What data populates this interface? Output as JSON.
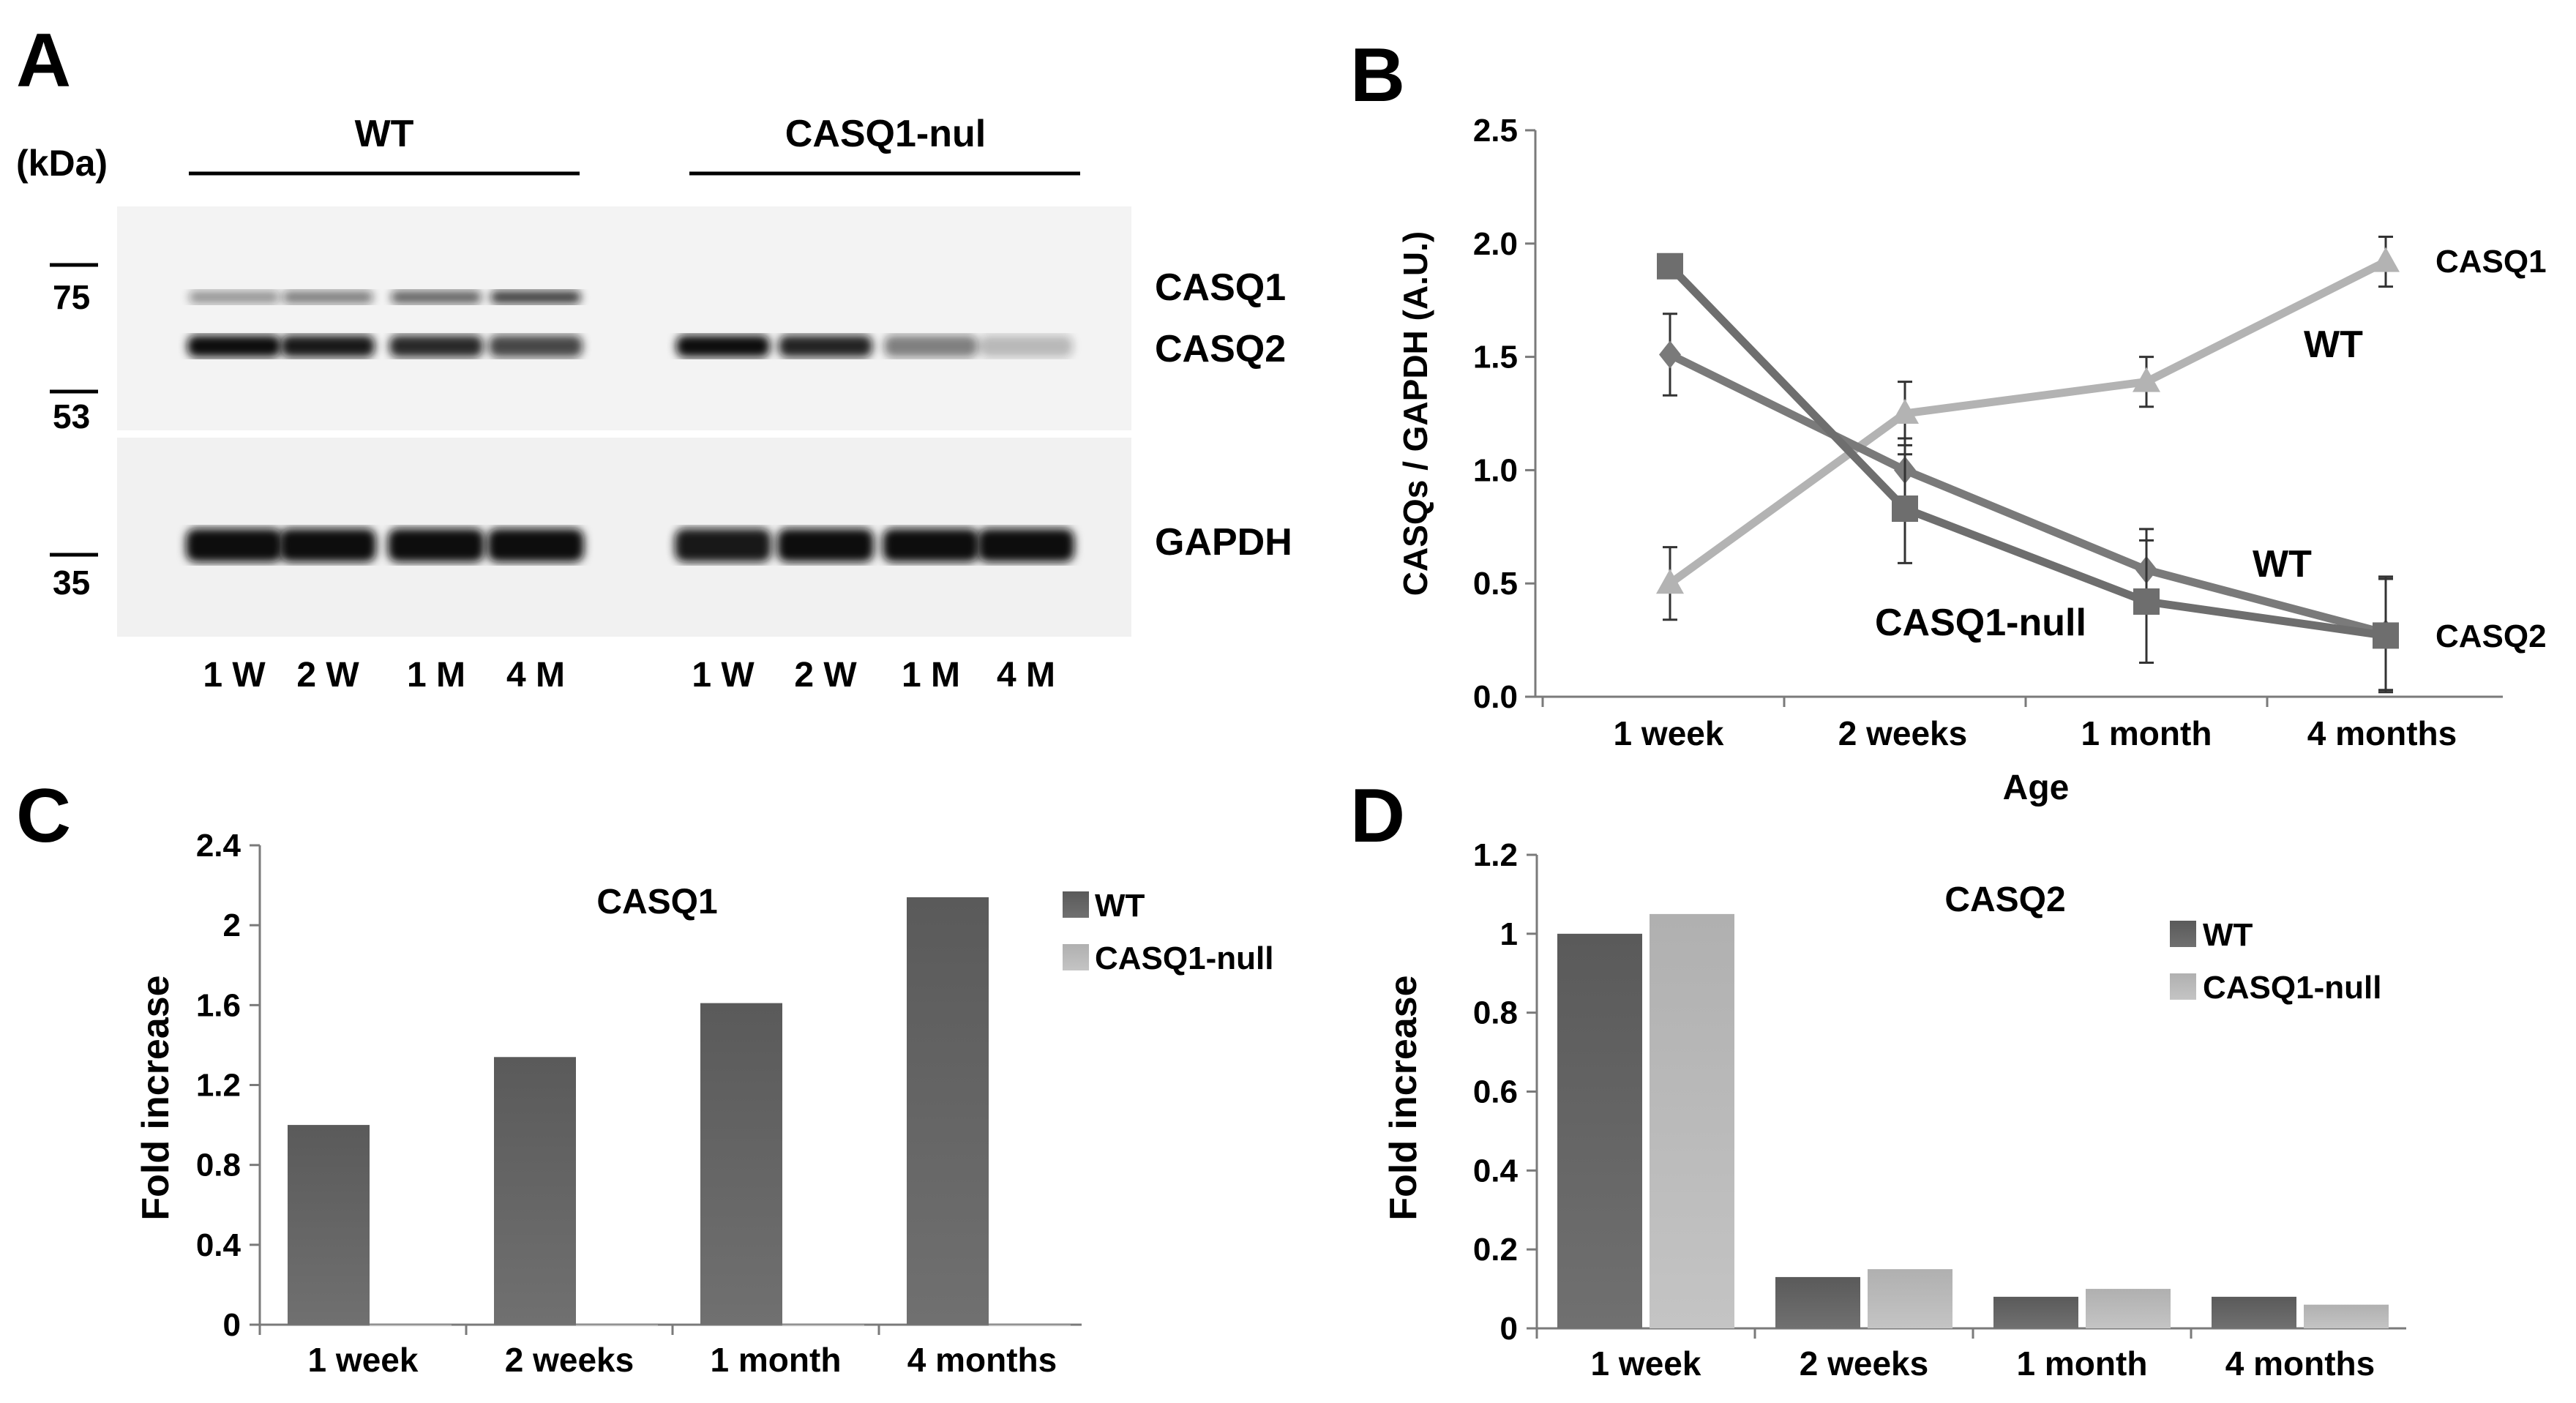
{
  "panel_letters": {
    "a": "A",
    "b": "B",
    "c": "C",
    "d": "D"
  },
  "blot": {
    "kda_label": "(kDa)",
    "groups": [
      "WT",
      "CASQ1-nul"
    ],
    "markers": [
      "75",
      "53",
      "35"
    ],
    "band_labels": [
      "CASQ1",
      "CASQ2",
      "GAPDH"
    ],
    "lanes": [
      "1 W",
      "2 W",
      "1 M",
      "4 M",
      "1 W",
      "2 W",
      "1 M",
      "4 M"
    ],
    "colors": {
      "band": "#111111",
      "background": "#f3f3f3"
    }
  },
  "chart_data": [
    {
      "panel": "B",
      "type": "line",
      "categories": [
        "1 week",
        "2 weeks",
        "1 month",
        "4 months"
      ],
      "xlabel": "Age",
      "ylabel": "CASQs / GAPDH (A.U.)",
      "ylim": [
        0,
        2.5
      ],
      "yticks": [
        "0.0",
        "0.5",
        "1.0",
        "1.5",
        "2.0",
        "2.5"
      ],
      "grid": false,
      "series": [
        {
          "values": [
            0.5,
            1.25,
            1.39,
            1.92
          ],
          "errors": [
            0.16,
            0.14,
            0.11,
            0.11
          ],
          "marker": "triangle",
          "color": "#b3b3b3"
        },
        {
          "values": [
            1.51,
            1.0,
            0.56,
            0.28
          ],
          "errors": [
            0.18,
            0.14,
            0.18,
            0.25
          ],
          "marker": "diamond",
          "color": "#7a7a7a"
        },
        {
          "values": [
            1.9,
            0.83,
            0.42,
            0.27
          ],
          "errors": [
            0.0,
            0.24,
            0.27,
            0.25
          ],
          "marker": "square",
          "color": "#6e6e6e"
        }
      ],
      "annotations": [
        "CASQ1",
        "WT",
        "WT",
        "CASQ1-null",
        "CASQ2"
      ]
    },
    {
      "panel": "C",
      "type": "bar",
      "title": "CASQ1",
      "categories": [
        "1 week",
        "2 weeks",
        "1 month",
        "4 months"
      ],
      "ylabel": "Fold increase",
      "ylim": [
        0,
        2.4
      ],
      "yticks": [
        "0",
        "0.4",
        "0.8",
        "1.2",
        "1.6",
        "2",
        "2.4"
      ],
      "legend_position": "top-right",
      "series": [
        {
          "name": "WT",
          "values": [
            1.0,
            1.34,
            1.61,
            2.14
          ],
          "color": "#636363"
        },
        {
          "name": "CASQ1-null",
          "values": [
            0,
            0,
            0,
            0
          ],
          "color": "#b8b8b8"
        }
      ]
    },
    {
      "panel": "D",
      "type": "bar",
      "title": "CASQ2",
      "categories": [
        "1 week",
        "2 weeks",
        "1 month",
        "4 months"
      ],
      "ylabel": "Fold increase",
      "ylim": [
        0,
        1.2
      ],
      "yticks": [
        "0",
        "0.2",
        "0.4",
        "0.6",
        "0.8",
        "1",
        "1.2"
      ],
      "legend_position": "top-right",
      "series": [
        {
          "name": "WT",
          "values": [
            1.0,
            0.13,
            0.08,
            0.08
          ],
          "color": "#636363"
        },
        {
          "name": "CASQ1-null",
          "values": [
            1.05,
            0.15,
            0.1,
            0.06
          ],
          "color": "#b8b8b8"
        }
      ]
    }
  ]
}
